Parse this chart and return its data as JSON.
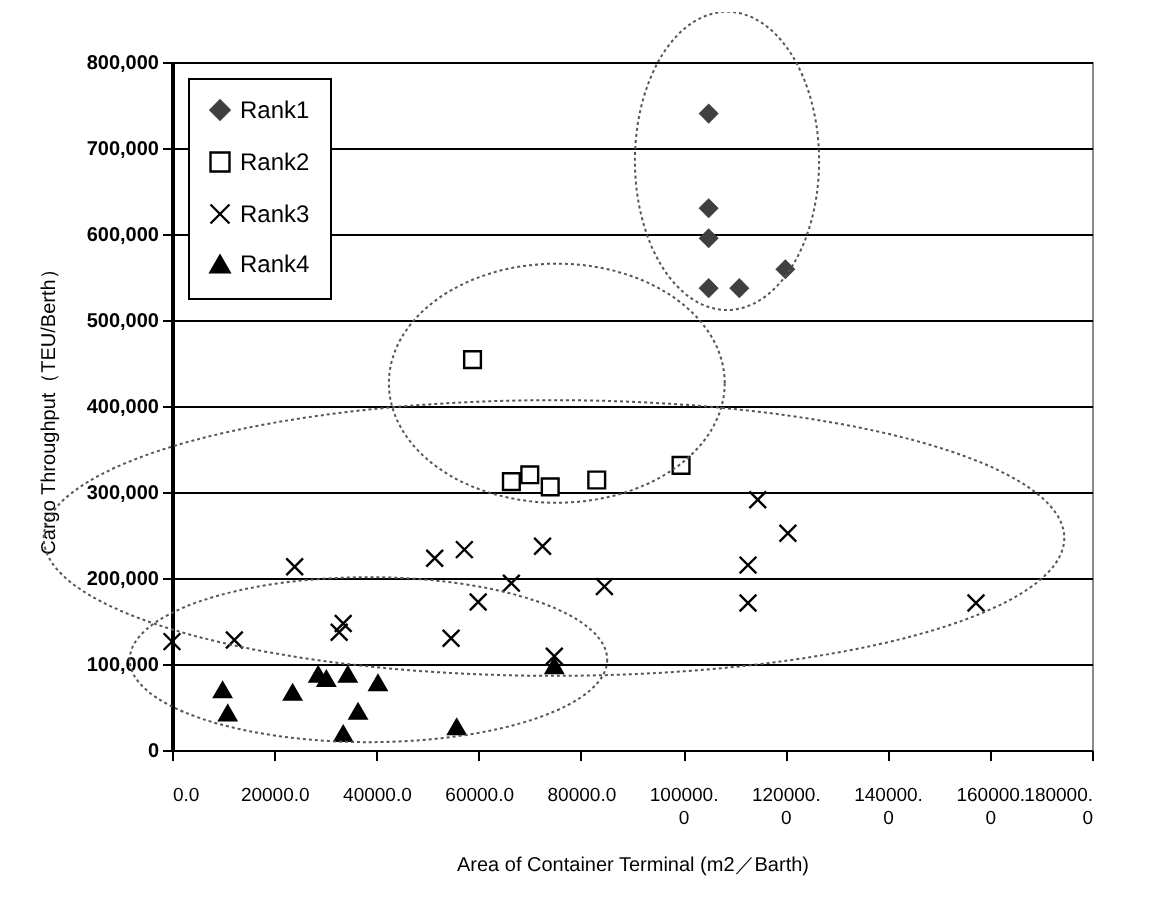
{
  "chart_data": {
    "type": "scatter",
    "xlabel": "Area of Container Terminal (m2／Barth)",
    "ylabel": "Cargo Throughput（TEU/Berth）",
    "xlim": [
      0,
      180000
    ],
    "xticks": [
      {
        "value": 0,
        "label": "0.0"
      },
      {
        "value": 20000,
        "label": "20000.0"
      },
      {
        "value": 40000,
        "label": "40000.0"
      },
      {
        "value": 60000,
        "label": "60000.0"
      },
      {
        "value": 80000,
        "label": "80000.0"
      },
      {
        "value": 100000,
        "label": "100000.0"
      },
      {
        "value": 120000,
        "label": "120000.0"
      },
      {
        "value": 140000,
        "label": "140000.0"
      },
      {
        "value": 160000,
        "label": "160000.0"
      },
      {
        "value": 180000,
        "label": "180000.0"
      }
    ],
    "ylim": [
      0,
      800000
    ],
    "yticks": [
      0,
      {
        "value": 100000,
        "label": "100,000"
      },
      {
        "value": 200000,
        "label": "200,000"
      },
      {
        "value": 300000,
        "label": "300,000"
      },
      {
        "value": 400000,
        "label": "400,000"
      },
      {
        "value": 500000,
        "label": "500,000"
      },
      {
        "value": 600000,
        "label": "600,000"
      },
      {
        "value": 700000,
        "label": "700,000"
      },
      {
        "value": 800000,
        "label": "800,000"
      }
    ],
    "grid": "y",
    "legend": "top left",
    "series": [
      {
        "name": "Rank1",
        "color": "#404040",
        "marker": "diamond",
        "x": [
          105000,
          105000,
          105000,
          105000,
          111000,
          120000
        ],
        "values": [
          740000,
          630000,
          595000,
          537000,
          537000,
          559000
        ]
      },
      {
        "name": "Rank2",
        "color": "#000000",
        "marker": "square",
        "x": [
          58800,
          66400,
          70000,
          74000,
          83100,
          99600
        ],
        "values": [
          454000,
          312000,
          320000,
          306000,
          314000,
          331000
        ]
      },
      {
        "name": "Rank3",
        "color": "#000000",
        "marker": "cross",
        "x": [
          0,
          12200,
          24000,
          32700,
          33500,
          51400,
          57200,
          54600,
          59900,
          66400,
          72500,
          84600,
          114600,
          120500,
          112700,
          112700,
          157300,
          74800
        ],
        "values": [
          126000,
          128000,
          213000,
          137000,
          147000,
          223000,
          233000,
          130000,
          172000,
          194000,
          237000,
          190000,
          291000,
          252000,
          215000,
          171000,
          171000,
          109000
        ]
      },
      {
        "name": "Rank4",
        "color": "#000000",
        "marker": "triangle",
        "x": [
          9900,
          10900,
          23600,
          28600,
          30200,
          34400,
          40300,
          36400,
          33500,
          55700,
          74800
        ],
        "values": [
          70000,
          43000,
          67000,
          88000,
          83000,
          88000,
          78000,
          45000,
          19000,
          27000,
          98000
        ]
      }
    ]
  }
}
